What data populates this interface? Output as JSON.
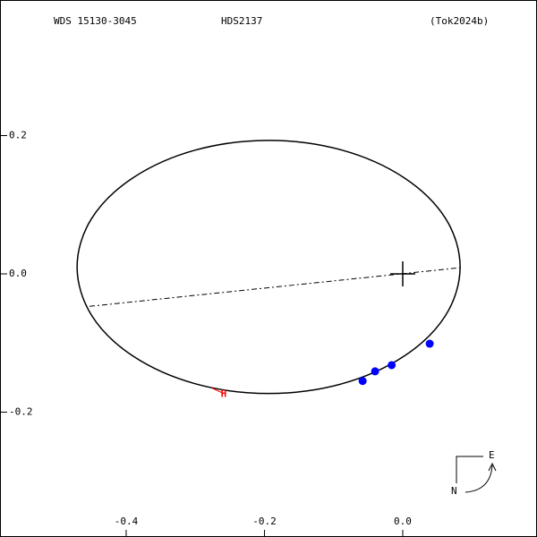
{
  "chart_data": {
    "type": "orbit",
    "title": "WDS 15130-3045",
    "subtitle": "HDS2137",
    "reference": "(Tok2024b)",
    "xlim": [
      -0.5825,
      0.1942
    ],
    "ylim": [
      -0.3806,
      0.3961
    ],
    "xticks": [
      -0.4,
      -0.2,
      {
        "value": 0,
        "label": "0.0"
      }
    ],
    "yticks": [
      0.2,
      {
        "value": 0,
        "label": "0.0"
      },
      -0.2
    ],
    "orbit": {
      "x": [
        0.083,
        0.062,
        0.002,
        -0.088,
        -0.194,
        -0.3,
        -0.39,
        -0.45,
        -0.471,
        -0.45,
        -0.39,
        -0.3,
        -0.194,
        -0.088,
        0.002,
        0.062
      ],
      "y": [
        0.01,
        0.08,
        0.139,
        0.179,
        0.193,
        0.179,
        0.139,
        0.08,
        0.01,
        -0.06,
        -0.119,
        -0.159,
        -0.173,
        -0.159,
        -0.119,
        -0.06
      ],
      "color": "#000000"
    },
    "node_line": {
      "x": [
        -0.453,
        0.084
      ],
      "y": [
        -0.047,
        0.009
      ]
    },
    "primary": {
      "x": 0,
      "y": 0
    },
    "observations": {
      "x": [
        -0.058,
        -0.04,
        -0.016,
        0.039
      ],
      "y": [
        -0.155,
        -0.141,
        -0.132,
        -0.101
      ],
      "color": "#0000ff"
    },
    "marker": {
      "label": "H",
      "x": -0.259,
      "y": -0.173,
      "color": "#ff0000"
    },
    "compass": {
      "east": "E",
      "north": "N"
    }
  }
}
